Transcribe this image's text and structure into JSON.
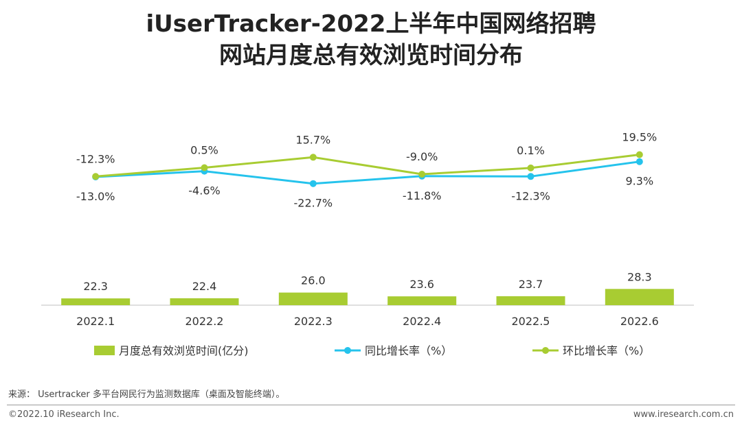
{
  "title_line1": "iUserTracker-2022上半年中国网络招聘",
  "title_line2": "网站月度总有效浏览时间分布",
  "source": "来源： Usertracker 多平台网民行为监测数据库（桌面及智能终端）。",
  "copyright": "©2022.10 iResearch Inc.",
  "website": "www.iresearch.com.cn",
  "chart_data": {
    "type": "bar+line",
    "categories": [
      "2022.1",
      "2022.2",
      "2022.3",
      "2022.4",
      "2022.5",
      "2022.6"
    ],
    "bars": {
      "name": "月度总有效浏览时间(亿分)",
      "values": [
        22.3,
        22.4,
        26.0,
        23.6,
        23.7,
        28.3
      ],
      "labels": [
        "22.3",
        "22.4",
        "26.0",
        "23.6",
        "23.7",
        "28.3"
      ],
      "color": "#a8cc32"
    },
    "lines": [
      {
        "name": "同比增长率（%）",
        "values": [
          -13.0,
          -4.6,
          -22.7,
          -11.8,
          -12.3,
          9.3
        ],
        "labels": [
          "-13.0%",
          "-4.6%",
          "-22.7%",
          "-11.8%",
          "-12.3%",
          "9.3%"
        ],
        "color": "#25c3ec"
      },
      {
        "name": "环比增长率（%）",
        "values": [
          -12.3,
          0.5,
          15.7,
          -9.0,
          0.1,
          19.5
        ],
        "labels": [
          "-12.3%",
          "0.5%",
          "15.7%",
          "-9.0%",
          "0.1%",
          "19.5%"
        ],
        "color": "#a8cc32"
      }
    ],
    "legend_position": "bottom",
    "grid": false
  }
}
